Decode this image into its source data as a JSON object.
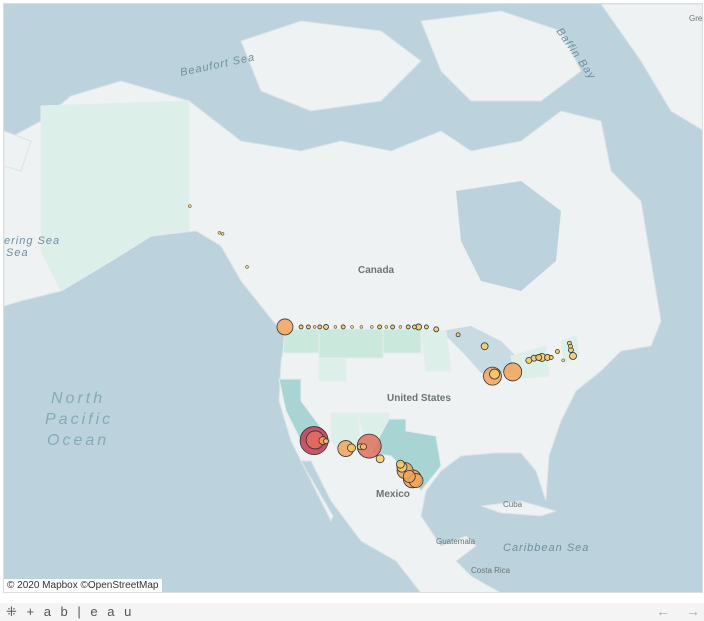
{
  "map": {
    "labels": {
      "beaufort": "Beaufort Sea",
      "baffin": "Baffin Bay",
      "bering": "ering Sea",
      "bering2": "Sea",
      "greenland": "Gre",
      "canada": "Canada",
      "us": "United States",
      "mexico": "Mexico",
      "cuba": "Cuba",
      "caribbean": "Caribbean Sea",
      "guatemala": "Guatemala",
      "costa_rica": "Costa Rica",
      "ocean1": "North",
      "ocean2": "Pacific",
      "ocean3": "Ocean"
    },
    "attribution": "© 2020 Mapbox ©OpenStreetMap",
    "colors": {
      "water": "#bcd3dd",
      "land": "#eef2f3",
      "state_green": "#cbe8dc",
      "state_teal": "#a9d4d4",
      "state_light": "#dcefe9",
      "small": "#f6c96a",
      "mid": "#f2a35a",
      "large": "#e2705e",
      "largest": "#c53a52"
    },
    "points": [
      {
        "lat": 49.0,
        "lon": -122.7,
        "size": 8,
        "level": "mid"
      },
      {
        "lat": 49.0,
        "lon": -119.6,
        "size": 2,
        "level": "small"
      },
      {
        "lat": 49.0,
        "lon": -118.2,
        "size": 2,
        "level": "small"
      },
      {
        "lat": 49.0,
        "lon": -117.0,
        "size": 1.5,
        "level": "small"
      },
      {
        "lat": 49.0,
        "lon": -116.0,
        "size": 2,
        "level": "small"
      },
      {
        "lat": 49.0,
        "lon": -114.8,
        "size": 2.5,
        "level": "small"
      },
      {
        "lat": 49.0,
        "lon": -113.0,
        "size": 1.5,
        "level": "small"
      },
      {
        "lat": 49.0,
        "lon": -111.5,
        "size": 2,
        "level": "small"
      },
      {
        "lat": 49.0,
        "lon": -109.8,
        "size": 1.5,
        "level": "small"
      },
      {
        "lat": 49.0,
        "lon": -108.0,
        "size": 1.5,
        "level": "small"
      },
      {
        "lat": 49.0,
        "lon": -106.0,
        "size": 1.5,
        "level": "small"
      },
      {
        "lat": 49.0,
        "lon": -104.5,
        "size": 2,
        "level": "small"
      },
      {
        "lat": 49.0,
        "lon": -103.2,
        "size": 1.5,
        "level": "small"
      },
      {
        "lat": 49.0,
        "lon": -102.0,
        "size": 2,
        "level": "small"
      },
      {
        "lat": 49.0,
        "lon": -100.5,
        "size": 1.5,
        "level": "small"
      },
      {
        "lat": 49.0,
        "lon": -99.0,
        "size": 2,
        "level": "small"
      },
      {
        "lat": 49.0,
        "lon": -97.8,
        "size": 2,
        "level": "small"
      },
      {
        "lat": 49.0,
        "lon": -97.0,
        "size": 3,
        "level": "small"
      },
      {
        "lat": 49.0,
        "lon": -95.5,
        "size": 2,
        "level": "small"
      },
      {
        "lat": 48.7,
        "lon": -93.6,
        "size": 2.5,
        "level": "small"
      },
      {
        "lat": 48.0,
        "lon": -89.4,
        "size": 2,
        "level": "small"
      },
      {
        "lat": 46.5,
        "lon": -84.3,
        "size": 3.5,
        "level": "small"
      },
      {
        "lat": 42.4,
        "lon": -82.8,
        "size": 9,
        "level": "mid"
      },
      {
        "lat": 42.7,
        "lon": -82.4,
        "size": 5,
        "level": "small"
      },
      {
        "lat": 43.0,
        "lon": -78.9,
        "size": 9,
        "level": "mid"
      },
      {
        "lat": 44.6,
        "lon": -75.8,
        "size": 3,
        "level": "small"
      },
      {
        "lat": 44.9,
        "lon": -74.8,
        "size": 3,
        "level": "small"
      },
      {
        "lat": 45.0,
        "lon": -73.9,
        "size": 3,
        "level": "small"
      },
      {
        "lat": 45.0,
        "lon": -73.3,
        "size": 4,
        "level": "small"
      },
      {
        "lat": 45.0,
        "lon": -72.2,
        "size": 3,
        "level": "small"
      },
      {
        "lat": 45.0,
        "lon": -71.5,
        "size": 2,
        "level": "small"
      },
      {
        "lat": 45.8,
        "lon": -70.3,
        "size": 2,
        "level": "small"
      },
      {
        "lat": 46.9,
        "lon": -68.0,
        "size": 2,
        "level": "small"
      },
      {
        "lat": 46.5,
        "lon": -67.8,
        "size": 2,
        "level": "small"
      },
      {
        "lat": 46.0,
        "lon": -67.7,
        "size": 2.5,
        "level": "small"
      },
      {
        "lat": 45.2,
        "lon": -67.3,
        "size": 3.5,
        "level": "small"
      },
      {
        "lat": 44.6,
        "lon": -69.2,
        "size": 1.5,
        "level": "small"
      },
      {
        "lat": 32.6,
        "lon": -117.1,
        "size": 14,
        "level": "largest"
      },
      {
        "lat": 32.7,
        "lon": -116.9,
        "size": 9,
        "level": "large"
      },
      {
        "lat": 32.6,
        "lon": -115.4,
        "size": 4,
        "level": "mid"
      },
      {
        "lat": 32.5,
        "lon": -114.8,
        "size": 2.5,
        "level": "small"
      },
      {
        "lat": 31.3,
        "lon": -111.0,
        "size": 8,
        "level": "mid"
      },
      {
        "lat": 31.4,
        "lon": -109.9,
        "size": 4,
        "level": "small"
      },
      {
        "lat": 31.6,
        "lon": -108.2,
        "size": 3,
        "level": "small"
      },
      {
        "lat": 31.6,
        "lon": -107.6,
        "size": 3,
        "level": "small"
      },
      {
        "lat": 31.7,
        "lon": -106.5,
        "size": 12,
        "level": "large"
      },
      {
        "lat": 29.6,
        "lon": -104.4,
        "size": 4,
        "level": "small"
      },
      {
        "lat": 28.7,
        "lon": -100.5,
        "size": 4,
        "level": "small"
      },
      {
        "lat": 28.2,
        "lon": -100.2,
        "size": 5,
        "level": "small"
      },
      {
        "lat": 27.6,
        "lon": -99.6,
        "size": 8,
        "level": "mid"
      },
      {
        "lat": 26.6,
        "lon": -98.8,
        "size": 6,
        "level": "mid"
      },
      {
        "lat": 26.2,
        "lon": -98.2,
        "size": 9,
        "level": "mid"
      },
      {
        "lat": 25.9,
        "lon": -97.5,
        "size": 7,
        "level": "mid"
      },
      {
        "lat": 59.5,
        "lon": -135.3,
        "size": 1.5,
        "level": "small"
      },
      {
        "lat": 59.4,
        "lon": -134.7,
        "size": 1.5,
        "level": "small"
      },
      {
        "lat": 56.0,
        "lon": -130.0,
        "size": 1.5,
        "level": "small"
      },
      {
        "lat": 62.0,
        "lon": -141.0,
        "size": 1.5,
        "level": "small"
      }
    ]
  },
  "footer": {
    "logo": "+ a b | e a u",
    "back": "←",
    "forward": "→"
  }
}
